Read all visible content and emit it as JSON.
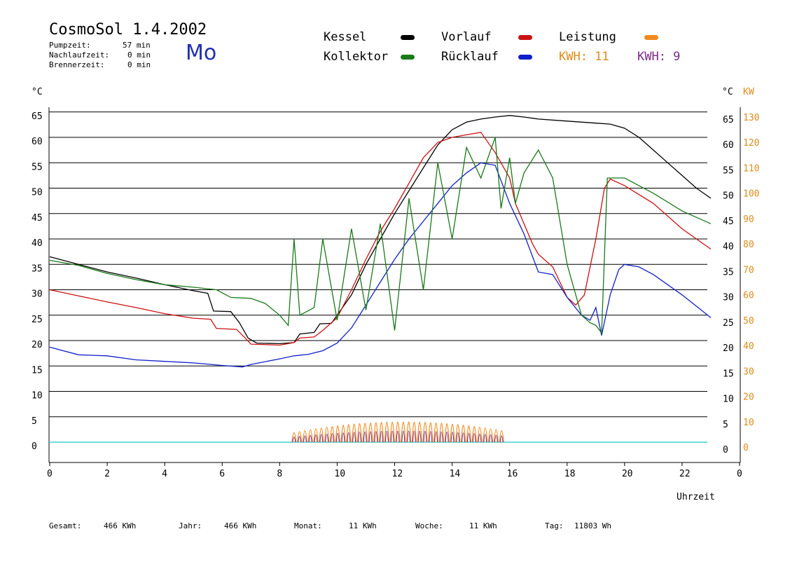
{
  "header": {
    "title": "CosmoSol 1.4.2002",
    "day": "Mo",
    "pump_label": "Pumpzeit:",
    "pump_value": "57 min",
    "nach_label": "Nachlaufzeit:",
    "nach_value": "0 min",
    "brenner_label": "Brennerzeit:",
    "brenner_value": "0 min"
  },
  "legend": {
    "kessel": "Kessel",
    "vorlauf": "Vorlauf",
    "leistung": "Leistung",
    "kollektor": "Kollektor",
    "ruecklauf": "Rücklauf",
    "kwh1": "KWH: 11",
    "kwh2": "KWH: 9",
    "colors": {
      "kessel": "#000000",
      "vorlauf": "#cc1111",
      "leistung": "#f08a1c",
      "kollektor": "#1a7a1a",
      "ruecklauf": "#1020c8",
      "kwh2": "#7a2a8a",
      "baseline": "#40d0d0"
    }
  },
  "axes": {
    "left_unit": "°C",
    "right_unit_c": "°C",
    "right_unit_kw": "KW",
    "xlabel": "Uhrzeit"
  },
  "footer": {
    "gesamt_label": "Gesamt:",
    "gesamt_value": "466 KWh",
    "jahr_label": "Jahr:",
    "jahr_value": "466 KWh",
    "monat_label": "Monat:",
    "monat_value": "11 KWh",
    "woche_label": "Woche:",
    "woche_value": "11 KWh",
    "tag_label": "Tag:",
    "tag_value": "11803 Wh"
  },
  "chart_data": {
    "type": "line",
    "xlabel": "Uhrzeit",
    "ylabel": "°C",
    "xlim": [
      0,
      24
    ],
    "ylim": [
      0,
      65
    ],
    "y2lim": [
      0,
      130
    ],
    "x_ticks": [
      "0",
      "2",
      "4",
      "6",
      "8",
      "10",
      "12",
      "14",
      "16",
      "18",
      "20",
      "22",
      "0"
    ],
    "y_ticks": [
      "0",
      "5",
      "10",
      "15",
      "20",
      "25",
      "30",
      "35",
      "40",
      "45",
      "50",
      "55",
      "60",
      "65"
    ],
    "y2_ticks": [
      "0",
      "10",
      "20",
      "30",
      "40",
      "50",
      "60",
      "70",
      "80",
      "90",
      "100",
      "110",
      "120",
      "130"
    ],
    "grid": true,
    "series": [
      {
        "name": "Kessel",
        "color": "#000000",
        "points": [
          [
            0,
            36.5
          ],
          [
            1,
            35.0
          ],
          [
            2,
            33.5
          ],
          [
            3,
            32.3
          ],
          [
            4,
            31.0
          ],
          [
            5,
            29.8
          ],
          [
            5.5,
            29.3
          ],
          [
            5.7,
            25.8
          ],
          [
            6.3,
            25.7
          ],
          [
            6.6,
            23.5
          ],
          [
            6.9,
            20.5
          ],
          [
            7.2,
            19.5
          ],
          [
            8,
            19.4
          ],
          [
            8.5,
            19.6
          ],
          [
            8.7,
            21.3
          ],
          [
            9.2,
            21.6
          ],
          [
            9.4,
            23.3
          ],
          [
            9.8,
            23.4
          ],
          [
            10,
            25.0
          ],
          [
            10.5,
            29.0
          ],
          [
            11,
            35.0
          ],
          [
            11.5,
            40.0
          ],
          [
            12,
            45.0
          ],
          [
            12.5,
            49.5
          ],
          [
            13,
            54.0
          ],
          [
            13.5,
            58.5
          ],
          [
            14,
            61.5
          ],
          [
            14.5,
            63.0
          ],
          [
            15,
            63.6
          ],
          [
            15.5,
            64.0
          ],
          [
            16,
            64.3
          ],
          [
            16.5,
            64.0
          ],
          [
            17,
            63.6
          ],
          [
            18,
            63.2
          ],
          [
            19,
            62.8
          ],
          [
            19.5,
            62.6
          ],
          [
            20,
            61.8
          ],
          [
            20.5,
            60.0
          ],
          [
            21,
            57.5
          ],
          [
            21.5,
            55.0
          ],
          [
            22,
            52.5
          ],
          [
            22.5,
            50.0
          ],
          [
            23,
            48.0
          ]
        ]
      },
      {
        "name": "Vorlauf",
        "color": "#cc1111",
        "points": [
          [
            0,
            30.0
          ],
          [
            1,
            28.8
          ],
          [
            2,
            27.6
          ],
          [
            3,
            26.5
          ],
          [
            4,
            25.3
          ],
          [
            5,
            24.4
          ],
          [
            5.6,
            24.2
          ],
          [
            5.8,
            22.4
          ],
          [
            6.5,
            22.2
          ],
          [
            6.8,
            20.5
          ],
          [
            7,
            19.3
          ],
          [
            8,
            19.1
          ],
          [
            8.5,
            19.6
          ],
          [
            8.7,
            20.5
          ],
          [
            9.2,
            20.7
          ],
          [
            9.5,
            22.0
          ],
          [
            10,
            24.5
          ],
          [
            10.5,
            30.0
          ],
          [
            11,
            36.0
          ],
          [
            11.5,
            41.5
          ],
          [
            12,
            46.0
          ],
          [
            12.5,
            51.0
          ],
          [
            13,
            56.0
          ],
          [
            13.5,
            59.0
          ],
          [
            14,
            60.0
          ],
          [
            14.5,
            60.5
          ],
          [
            15,
            61.0
          ],
          [
            15.5,
            57.0
          ],
          [
            16,
            52.0
          ],
          [
            16.2,
            47.0
          ],
          [
            16.5,
            43.0
          ],
          [
            16.8,
            39.0
          ],
          [
            17,
            37.0
          ],
          [
            17.5,
            34.5
          ],
          [
            18,
            28.5
          ],
          [
            18.3,
            27.0
          ],
          [
            18.6,
            29.0
          ],
          [
            19,
            40.0
          ],
          [
            19.3,
            50.0
          ],
          [
            19.5,
            51.8
          ],
          [
            20,
            50.5
          ],
          [
            21,
            47.0
          ],
          [
            22,
            42.0
          ],
          [
            23,
            38.0
          ]
        ]
      },
      {
        "name": "Rücklauf",
        "color": "#1020c8",
        "points": [
          [
            0,
            18.7
          ],
          [
            1,
            17.2
          ],
          [
            2,
            17.0
          ],
          [
            3,
            16.2
          ],
          [
            4,
            15.9
          ],
          [
            5,
            15.6
          ],
          [
            6,
            15.1
          ],
          [
            6.7,
            14.8
          ],
          [
            7,
            15.3
          ],
          [
            8,
            16.4
          ],
          [
            8.5,
            17.0
          ],
          [
            9,
            17.3
          ],
          [
            9.5,
            18.0
          ],
          [
            10,
            19.5
          ],
          [
            10.5,
            22.5
          ],
          [
            11,
            27.0
          ],
          [
            11.5,
            31.5
          ],
          [
            12,
            36.0
          ],
          [
            12.5,
            40.0
          ],
          [
            13,
            43.5
          ],
          [
            13.5,
            47.0
          ],
          [
            14,
            50.5
          ],
          [
            14.5,
            53.0
          ],
          [
            15,
            55.0
          ],
          [
            15.5,
            54.5
          ],
          [
            16,
            47.0
          ],
          [
            16.5,
            41.0
          ],
          [
            17,
            33.5
          ],
          [
            17.5,
            33.0
          ],
          [
            18,
            28.5
          ],
          [
            18.5,
            25.0
          ],
          [
            18.8,
            24.0
          ],
          [
            19,
            26.5
          ],
          [
            19.2,
            21.0
          ],
          [
            19.5,
            29.0
          ],
          [
            19.8,
            34.0
          ],
          [
            20,
            35.0
          ],
          [
            20.5,
            34.5
          ],
          [
            21,
            33.0
          ],
          [
            22,
            29.0
          ],
          [
            23,
            24.5
          ]
        ]
      },
      {
        "name": "Kollektor",
        "color": "#1a7a1a",
        "points": [
          [
            0,
            35.8
          ],
          [
            1,
            34.8
          ],
          [
            2,
            33.2
          ],
          [
            3,
            32.0
          ],
          [
            4,
            31.0
          ],
          [
            5,
            30.5
          ],
          [
            5.8,
            30.0
          ],
          [
            6.3,
            28.5
          ],
          [
            7,
            28.3
          ],
          [
            7.5,
            27.3
          ],
          [
            8,
            25.0
          ],
          [
            8.3,
            23.0
          ],
          [
            8.5,
            40.0
          ],
          [
            8.7,
            25.0
          ],
          [
            9.2,
            26.5
          ],
          [
            9.5,
            40.0
          ],
          [
            10,
            24.0
          ],
          [
            10.5,
            42.0
          ],
          [
            11,
            26.0
          ],
          [
            11.5,
            43.0
          ],
          [
            12,
            22.0
          ],
          [
            12.5,
            48.0
          ],
          [
            13,
            30.0
          ],
          [
            13.5,
            55.0
          ],
          [
            14,
            40.0
          ],
          [
            14.5,
            58.0
          ],
          [
            15,
            52.0
          ],
          [
            15.5,
            60.0
          ],
          [
            15.7,
            46.0
          ],
          [
            16,
            56.0
          ],
          [
            16.2,
            47.0
          ],
          [
            16.5,
            53.0
          ],
          [
            17,
            57.5
          ],
          [
            17.5,
            52.0
          ],
          [
            18,
            35.0
          ],
          [
            18.5,
            25.0
          ],
          [
            18.8,
            23.5
          ],
          [
            19,
            23.0
          ],
          [
            19.2,
            21.5
          ],
          [
            19.4,
            52.0
          ],
          [
            20,
            52.0
          ],
          [
            21,
            49.0
          ],
          [
            22,
            45.5
          ],
          [
            23,
            43.0
          ]
        ]
      }
    ],
    "leistung_kw": {
      "name": "Leistung",
      "x": [
        8.5,
        15.8
      ],
      "max_kw": 8,
      "note": "spikes"
    },
    "kwh_totals": [
      11,
      9
    ]
  }
}
